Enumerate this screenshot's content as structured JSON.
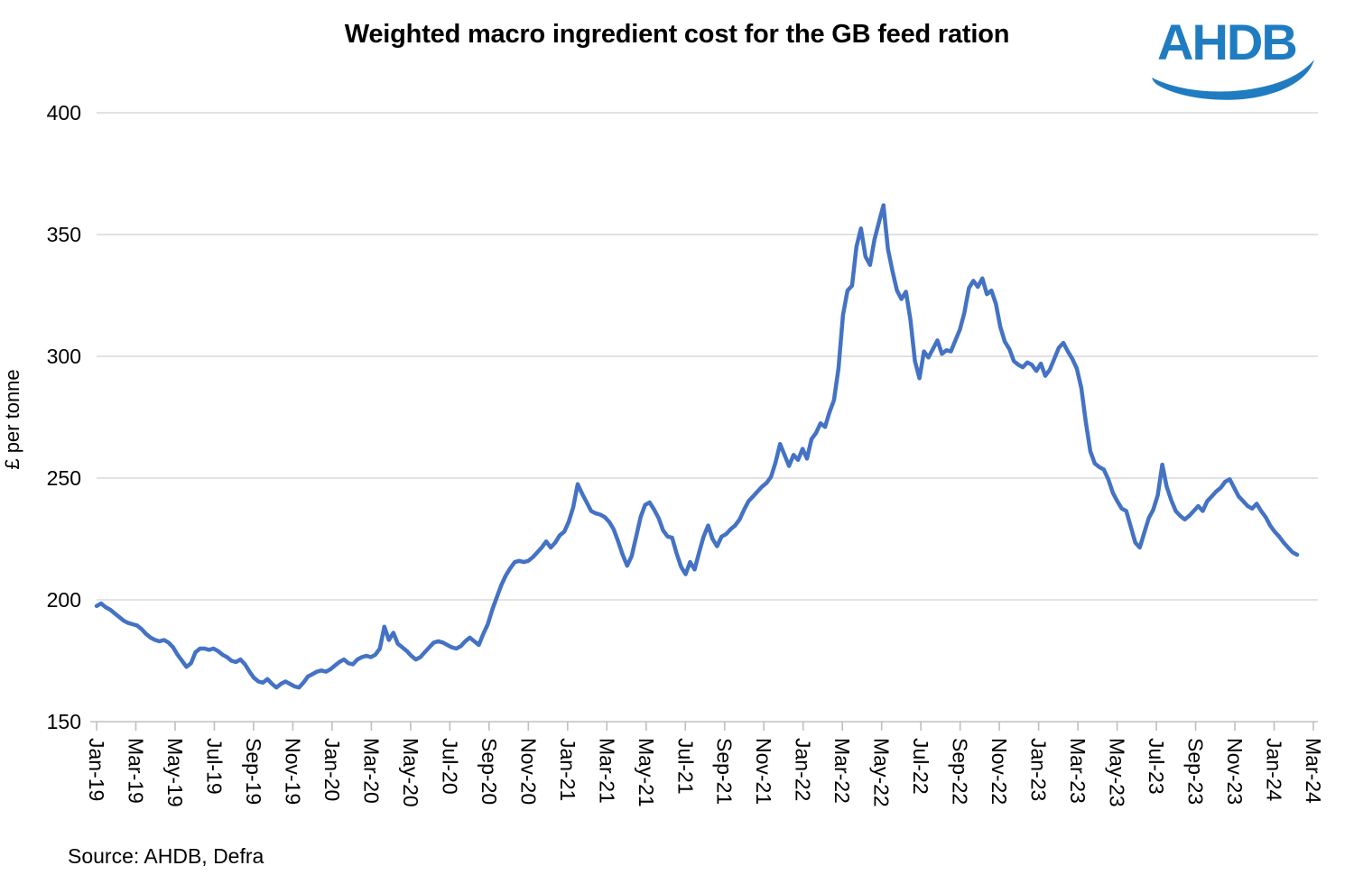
{
  "title": "Weighted macro ingredient cost for the GB feed ration",
  "logo": {
    "text": "AHDB",
    "color": "#1F7CC1"
  },
  "source": "Source: AHDB, Defra",
  "chart_data": {
    "type": "line",
    "title": "Weighted macro ingredient cost for the GB feed ration",
    "xlabel": "",
    "ylabel": "£ per tonne",
    "ylim": [
      150,
      400
    ],
    "yticks": [
      150,
      200,
      250,
      300,
      350,
      400
    ],
    "grid": "horizontal",
    "legend": "none",
    "x_tick_labels": [
      "Jan-19",
      "Mar-19",
      "May-19",
      "Jul-19",
      "Sep-19",
      "Nov-19",
      "Jan-20",
      "Mar-20",
      "May-20",
      "Jul-20",
      "Sep-20",
      "Nov-20",
      "Jan-21",
      "Mar-21",
      "May-21",
      "Jul-21",
      "Sep-21",
      "Nov-21",
      "Jan-22",
      "Mar-22",
      "May-22",
      "Jul-22",
      "Sep-22",
      "Nov-22",
      "Jan-23",
      "Mar-23",
      "May-23",
      "Jul-23",
      "Sep-23",
      "Nov-23",
      "Jan-24",
      "Mar-24"
    ],
    "colors": {
      "line": "#4472C4",
      "gridline": "#D9D9D9",
      "axis": "#BFBFBF",
      "text": "#000000"
    },
    "series": [
      {
        "name": "GB feed ration weighted macro ingredient cost",
        "unit": "£ per tonne",
        "frequency": "weekly",
        "start": "Jan-19",
        "end": "Feb-24",
        "values": [
          197.5,
          198.5,
          197,
          196,
          194.5,
          193,
          191.5,
          190.5,
          190,
          189.5,
          188,
          186,
          184.5,
          183.5,
          183,
          183.5,
          182.5,
          180.5,
          177.5,
          175,
          172.5,
          174,
          178.5,
          180,
          180,
          179.5,
          180,
          179,
          177.5,
          176.5,
          175,
          174.5,
          175.5,
          173.5,
          170.5,
          168,
          166.5,
          166,
          167.5,
          165.5,
          164,
          165.5,
          166.5,
          165.5,
          164.5,
          164,
          166,
          168.5,
          169.5,
          170.5,
          171,
          170.5,
          171.5,
          173,
          174.5,
          175.5,
          174,
          173.5,
          175.5,
          176.5,
          177,
          176.5,
          177.5,
          180,
          189,
          183.5,
          186.5,
          182,
          180.5,
          179,
          177,
          175.5,
          176.5,
          178.5,
          180.5,
          182.5,
          183,
          182.5,
          181.5,
          180.5,
          180,
          181,
          183,
          184.5,
          183,
          181.5,
          186,
          190,
          196,
          201,
          206,
          210,
          213,
          215.5,
          216,
          215.5,
          216,
          217.5,
          219.5,
          221.5,
          224,
          221.5,
          223.5,
          226.5,
          228,
          232,
          238,
          247.5,
          243.5,
          240,
          236.5,
          235.5,
          235,
          234,
          232,
          229,
          224,
          218.5,
          214,
          218,
          226,
          234,
          239,
          240,
          237,
          233.5,
          228.5,
          226,
          225.5,
          219,
          213.5,
          210.5,
          215.5,
          212.5,
          219.5,
          226,
          230.5,
          225,
          222,
          226,
          227,
          229,
          230.5,
          233,
          237,
          240.5,
          242.5,
          244.5,
          246.5,
          248,
          250.5,
          256.5,
          264,
          259.5,
          255,
          259.5,
          257.5,
          262,
          258,
          266,
          268.5,
          272.5,
          271,
          277,
          282,
          295,
          317,
          327,
          329,
          345,
          352.5,
          341,
          337.5,
          348,
          355,
          362,
          344,
          335,
          327,
          323.5,
          326.5,
          315,
          298,
          291,
          302,
          299.5,
          303,
          306.5,
          301,
          302.5,
          302,
          306.5,
          311,
          318,
          328,
          331,
          328.5,
          332,
          325.5,
          327,
          321.5,
          312,
          306,
          303,
          298,
          296.5,
          295.5,
          297.5,
          296.5,
          294,
          297,
          292,
          294.5,
          299,
          303.5,
          305.5,
          302,
          299,
          295,
          287,
          273,
          261,
          256,
          254.5,
          253.5,
          249.5,
          244,
          240.5,
          237.5,
          236.5,
          230,
          223.5,
          221.5,
          227.5,
          233.5,
          237,
          243,
          255.5,
          246.5,
          241,
          236.5,
          234.5,
          233,
          234.5,
          236.5,
          238.5,
          236.5,
          240.5,
          242.5,
          244.5,
          246,
          248.5,
          249.5,
          246,
          242.5,
          240.5,
          238.5,
          237.5,
          239.5,
          236.5,
          234,
          230.5,
          228,
          226,
          223.5,
          221.5,
          219.5,
          218.5
        ]
      }
    ]
  }
}
